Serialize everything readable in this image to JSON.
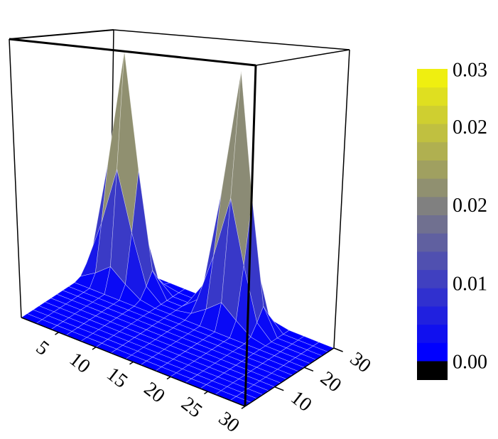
{
  "chart_data": {
    "type": "surface",
    "x": [
      0,
      2,
      4,
      6,
      8,
      10,
      12,
      14,
      16,
      18,
      20,
      22,
      24,
      26,
      28,
      30
    ],
    "y": [
      0,
      2,
      4,
      6,
      8,
      10,
      12,
      14,
      16,
      18,
      20,
      22,
      24,
      26,
      28,
      30
    ],
    "z": [
      [
        0,
        0,
        0,
        0,
        0,
        0,
        0,
        0,
        0,
        0,
        0,
        0,
        0,
        0,
        0,
        0
      ],
      [
        0,
        0,
        0,
        0,
        0,
        0,
        0,
        0,
        0,
        0,
        0,
        0,
        0,
        0,
        0,
        0
      ],
      [
        0,
        0,
        0,
        0,
        0,
        0,
        0,
        0,
        0,
        0,
        0,
        0,
        0,
        0,
        0,
        0
      ],
      [
        0,
        0,
        0,
        0,
        0,
        0,
        0,
        0,
        0,
        0,
        0,
        0,
        0,
        0,
        0,
        0
      ],
      [
        0,
        0,
        0,
        0,
        0,
        0,
        0,
        0,
        0,
        0,
        0,
        0,
        0,
        0,
        0,
        0
      ],
      [
        0,
        0,
        0,
        0,
        0,
        0,
        0,
        0,
        0,
        0,
        0,
        0,
        0,
        0,
        0,
        0
      ],
      [
        0,
        0,
        0,
        0,
        0,
        0,
        0,
        0,
        0,
        0,
        0,
        0,
        0,
        0,
        0,
        0
      ],
      [
        0,
        0,
        0,
        0,
        0,
        0,
        0,
        0,
        0,
        0,
        0,
        0,
        0,
        0,
        0,
        0
      ],
      [
        0,
        0,
        0,
        0,
        0,
        0,
        0,
        0,
        0,
        0,
        0,
        0,
        0,
        0,
        0,
        0
      ],
      [
        0,
        0,
        0,
        0,
        0,
        0,
        0,
        0,
        0,
        0,
        0,
        0,
        0,
        0,
        0,
        0
      ],
      [
        0.0003,
        0.0014,
        0.0028,
        0.0014,
        0.0003,
        0,
        0,
        0,
        0,
        0,
        0,
        0,
        0,
        0,
        0,
        0
      ],
      [
        0.0014,
        0.007,
        0.014,
        0.007,
        0.0014,
        0,
        0,
        0.0003,
        0.0014,
        0.0027,
        0.0014,
        0.0003,
        0,
        0,
        0,
        0
      ],
      [
        0.0028,
        0.014,
        0.028,
        0.014,
        0.0028,
        0,
        0,
        0.0014,
        0.0068,
        0.0135,
        0.0068,
        0.0014,
        0,
        0,
        0,
        0
      ],
      [
        0.0014,
        0.007,
        0.014,
        0.007,
        0.0014,
        0,
        0,
        0.0027,
        0.0135,
        0.027,
        0.0135,
        0.0027,
        0,
        0,
        0,
        0
      ],
      [
        0.0003,
        0.0014,
        0.0028,
        0.0014,
        0.0003,
        0,
        0,
        0.0014,
        0.0068,
        0.0135,
        0.0068,
        0.0014,
        0,
        0,
        0,
        0
      ],
      [
        0,
        0,
        0,
        0,
        0,
        0,
        0,
        0.0003,
        0.0014,
        0.0027,
        0.0014,
        0.0003,
        0,
        0,
        0,
        0
      ]
    ],
    "xlim": [
      0,
      30
    ],
    "ylim": [
      0,
      30
    ],
    "zlim": [
      0,
      0.03
    ],
    "xticks": [
      5,
      10,
      15,
      20,
      25,
      30
    ],
    "yticks": [
      10,
      20,
      30
    ],
    "clim": [
      0,
      0.028
    ],
    "cticks": [
      {
        "value": 0,
        "label": "0.00"
      },
      {
        "value": 0.0075,
        "label": "0.01"
      },
      {
        "value": 0.015,
        "label": "0.02"
      },
      {
        "value": 0.0225,
        "label": "0.02"
      },
      {
        "value": 0.028,
        "label": "0.03"
      }
    ],
    "colormap": [
      "#0000ff",
      "#808080",
      "#ffff00"
    ]
  }
}
